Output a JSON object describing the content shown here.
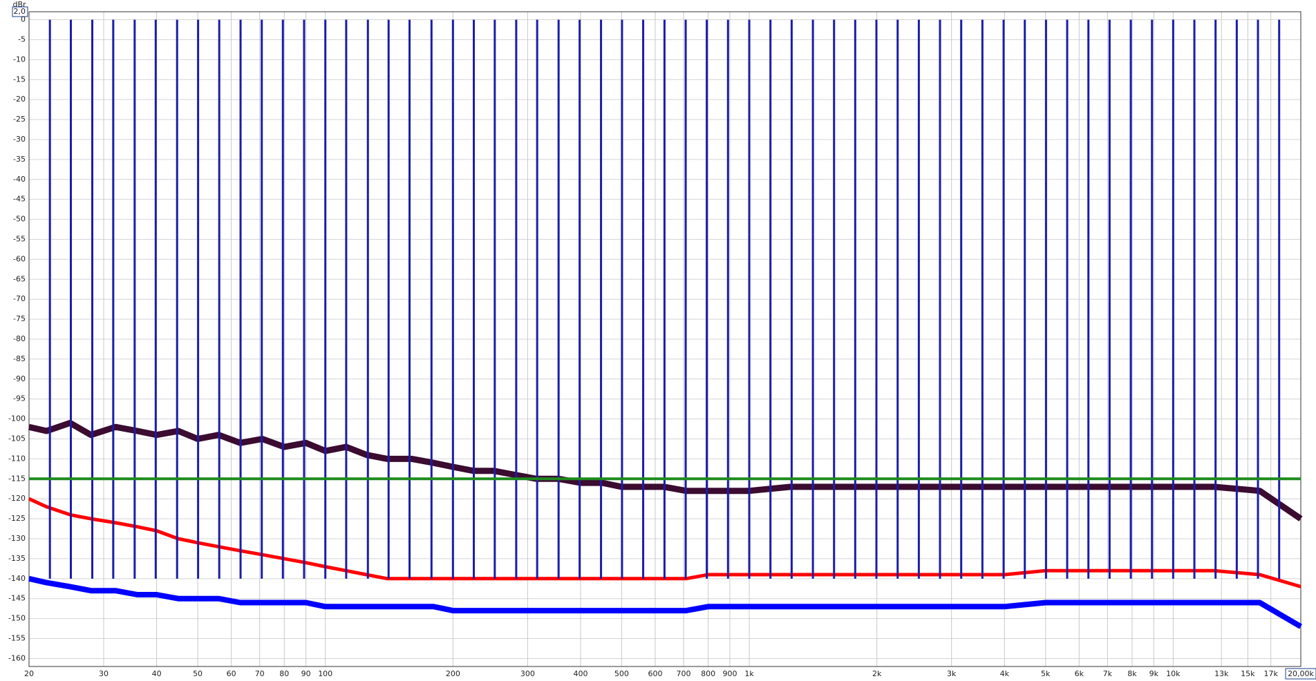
{
  "chart_data": {
    "type": "line",
    "log_x": true,
    "grid": true,
    "y_label": "dBr",
    "xlim": [
      20,
      20000
    ],
    "ylim": [
      -162,
      2
    ],
    "xticks": [
      20,
      30,
      40,
      50,
      60,
      70,
      80,
      90,
      100,
      200,
      300,
      400,
      500,
      600,
      700,
      800,
      900,
      {
        "value": 1000,
        "label": "1k"
      },
      {
        "value": 2000,
        "label": "2k"
      },
      {
        "value": 3000,
        "label": "3k"
      },
      {
        "value": 4000,
        "label": "4k"
      },
      {
        "value": 5000,
        "label": "5k"
      },
      {
        "value": 6000,
        "label": "6k"
      },
      {
        "value": 7000,
        "label": "7k"
      },
      {
        "value": 8000,
        "label": "8k"
      },
      {
        "value": 9000,
        "label": "9k"
      },
      {
        "value": 10000,
        "label": "10k"
      },
      {
        "value": 13000,
        "label": "13k"
      },
      {
        "value": 15000,
        "label": "15k"
      },
      {
        "value": 17000,
        "label": "17k"
      },
      {
        "value": 20000,
        "label": "20,00k"
      }
    ],
    "yticks": [
      {
        "value": 2,
        "label": "2,0"
      },
      0,
      -5,
      -10,
      -15,
      -20,
      -25,
      -30,
      -35,
      -40,
      -45,
      -50,
      -55,
      -60,
      -65,
      -70,
      -75,
      -80,
      -85,
      -90,
      -95,
      -100,
      -105,
      -110,
      -115,
      -120,
      -125,
      -130,
      -135,
      -140,
      -145,
      -150,
      -155,
      -160
    ],
    "series": [
      {
        "color": "#3b0b30",
        "x": [
          20,
          22,
          25,
          28,
          32,
          36,
          40,
          45,
          50,
          56,
          63,
          71,
          80,
          90,
          100,
          112,
          125,
          140,
          160,
          180,
          200,
          224,
          250,
          280,
          315,
          355,
          400,
          450,
          500,
          560,
          630,
          710,
          800,
          900,
          1000,
          1250,
          1600,
          2000,
          2500,
          3150,
          4000,
          5000,
          6300,
          8000,
          10000,
          12500,
          16000,
          20000
        ],
        "values": [
          -102,
          -103,
          -101,
          -104,
          -102,
          -103,
          -104,
          -103,
          -105,
          -104,
          -106,
          -105,
          -107,
          -106,
          -108,
          -107,
          -109,
          -110,
          -110,
          -111,
          -112,
          -113,
          -113,
          -114,
          -115,
          -115,
          -116,
          -116,
          -117,
          -117,
          -117,
          -118,
          -118,
          -118,
          -118,
          -117,
          -117,
          -117,
          -117,
          -117,
          -117,
          -117,
          -117,
          -117,
          -117,
          -117,
          -118,
          -125
        ]
      },
      {
        "color": "#ff0000",
        "x": [
          20,
          22,
          25,
          28,
          32,
          36,
          40,
          45,
          50,
          56,
          63,
          71,
          80,
          90,
          100,
          112,
          125,
          140,
          160,
          180,
          200,
          224,
          250,
          280,
          315,
          355,
          400,
          450,
          500,
          560,
          630,
          710,
          800,
          900,
          1000,
          1250,
          1600,
          2000,
          2500,
          3150,
          4000,
          5000,
          6300,
          8000,
          10000,
          12500,
          16000,
          20000
        ],
        "values": [
          -120,
          -122,
          -124,
          -125,
          -126,
          -127,
          -128,
          -130,
          -131,
          -132,
          -133,
          -134,
          -135,
          -136,
          -137,
          -138,
          -139,
          -140,
          -140,
          -140,
          -140,
          -140,
          -140,
          -140,
          -140,
          -140,
          -140,
          -140,
          -140,
          -140,
          -140,
          -140,
          -139,
          -139,
          -139,
          -139,
          -139,
          -139,
          -139,
          -139,
          -139,
          -138,
          -138,
          -138,
          -138,
          -138,
          -139,
          -142
        ]
      },
      {
        "color": "#0000ff",
        "x": [
          20,
          22,
          25,
          28,
          32,
          36,
          40,
          45,
          50,
          56,
          63,
          71,
          80,
          90,
          100,
          112,
          125,
          140,
          160,
          180,
          200,
          224,
          250,
          280,
          315,
          355,
          400,
          450,
          500,
          560,
          630,
          710,
          800,
          900,
          1000,
          1250,
          1600,
          2000,
          2500,
          3150,
          4000,
          5000,
          6300,
          8000,
          10000,
          12500,
          16000,
          20000
        ],
        "values": [
          -140,
          -141,
          -142,
          -143,
          -143,
          -144,
          -144,
          -145,
          -145,
          -145,
          -146,
          -146,
          -146,
          -146,
          -147,
          -147,
          -147,
          -147,
          -147,
          -147,
          -148,
          -148,
          -148,
          -148,
          -148,
          -148,
          -148,
          -148,
          -148,
          -148,
          -148,
          -148,
          -147,
          -147,
          -147,
          -147,
          -147,
          -147,
          -147,
          -147,
          -147,
          -146,
          -146,
          -146,
          -146,
          -146,
          -146,
          -152
        ]
      },
      {
        "color": "#1e8a1e",
        "x": [
          20,
          20000
        ],
        "values": [
          -115,
          -115
        ]
      }
    ],
    "tones": {
      "color": "#1c1caa",
      "x": [
        22.4,
        25.1,
        28.2,
        31.6,
        35.5,
        39.8,
        44.7,
        50.1,
        56.2,
        63.1,
        70.8,
        79.4,
        89.1,
        100,
        112,
        126,
        141,
        158,
        178,
        200,
        224,
        251,
        282,
        316,
        355,
        398,
        447,
        501,
        562,
        631,
        708,
        794,
        891,
        1000,
        1122,
        1259,
        1413,
        1585,
        1778,
        1995,
        2239,
        2512,
        2818,
        3162,
        3548,
        3981,
        4467,
        5012,
        5623,
        6310,
        7079,
        7943,
        8913,
        10000,
        11220,
        12589,
        14125,
        15849,
        17783
      ],
      "values": [
        0,
        0,
        0,
        0,
        0,
        0,
        0,
        0,
        0,
        0,
        0,
        0,
        0,
        0,
        0,
        0,
        0,
        0,
        0,
        0,
        0,
        0,
        0,
        0,
        0,
        0,
        0,
        0,
        0,
        0,
        0,
        0,
        0,
        0,
        0,
        0,
        0,
        0,
        0,
        0,
        0,
        0,
        0,
        0,
        0,
        0,
        0,
        0,
        0,
        0,
        0,
        0,
        0,
        0,
        0,
        0,
        0,
        0,
        0
      ]
    }
  }
}
